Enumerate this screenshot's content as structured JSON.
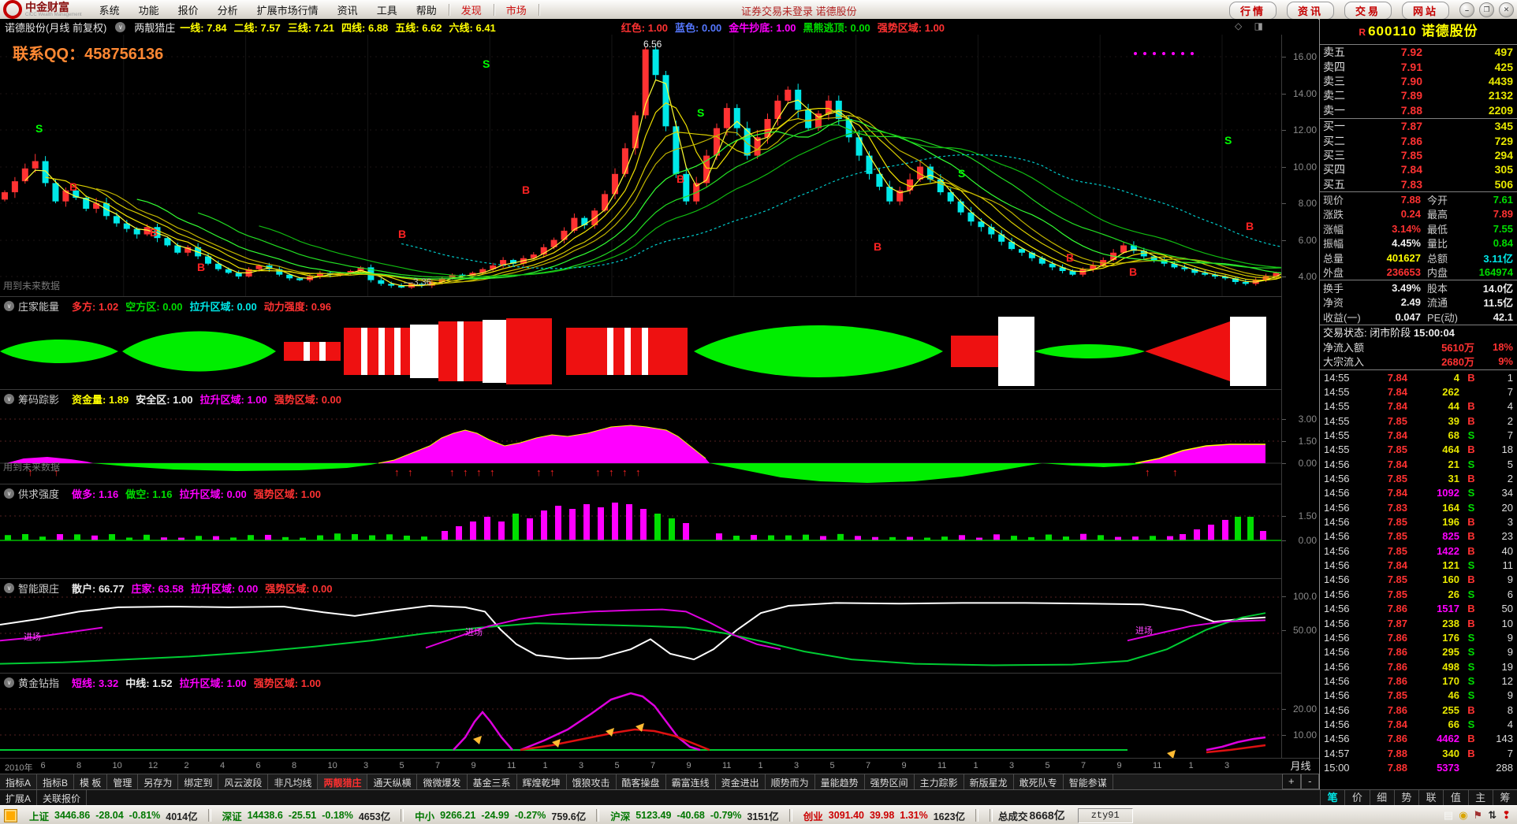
{
  "menu": {
    "logo_title": "中金财富",
    "logo_sub": "CICC Wealth Management",
    "items": [
      "系统",
      "功能",
      "报价",
      "分析",
      "扩展市场行情",
      "资讯",
      "工具",
      "帮助"
    ],
    "accent_items": [
      "发现",
      "市场"
    ],
    "login_status": "证券交易未登录 诺德股份",
    "quick_buttons": [
      "行情",
      "资讯",
      "交易",
      "网站"
    ],
    "window_controls": [
      "–",
      "❐",
      "✕"
    ]
  },
  "chart_header": {
    "title": "诺德股份(月线 前复权)",
    "indicator": "两靓猎庄",
    "params": [
      {
        "label": "一线",
        "value": "7.84",
        "color": "yellow"
      },
      {
        "label": "二线",
        "value": "7.57",
        "color": "yellow"
      },
      {
        "label": "三线",
        "value": "7.21",
        "color": "yellow"
      },
      {
        "label": "四线",
        "value": "6.88",
        "color": "yellow"
      },
      {
        "label": "五线",
        "value": "6.62",
        "color": "yellow"
      },
      {
        "label": "六线",
        "value": "6.41",
        "color": "yellow"
      },
      {
        "label": "红色",
        "value": "1.00",
        "color": "red",
        "gap": true
      },
      {
        "label": "蓝色",
        "value": "0.00",
        "color": "blue"
      },
      {
        "label": "金牛抄底",
        "value": "1.00",
        "color": "magenta"
      },
      {
        "label": "黑熊逃顶",
        "value": "0.00",
        "color": "green"
      },
      {
        "label": "强势区域",
        "value": "1.00",
        "color": "red"
      }
    ]
  },
  "overlays": {
    "qq": "联系QQ：458756136",
    "future_note": "用到未来数据",
    "high_label": "6.56",
    "low_label": "3.36",
    "layout_icons": "◇ ◨",
    "entry_label": "进场"
  },
  "panels": [
    {
      "name": "庄家能量",
      "params": [
        {
          "label": "多方",
          "value": "1.02",
          "color": "red"
        },
        {
          "label": "空方区",
          "value": "0.00",
          "color": "green"
        },
        {
          "label": "拉升区域",
          "value": "0.00",
          "color": "cyan"
        },
        {
          "label": "动力强度",
          "value": "0.96",
          "color": "red"
        }
      ],
      "axis": []
    },
    {
      "name": "筹码踪影",
      "params": [
        {
          "label": "资金量",
          "value": "1.89",
          "color": "yellow"
        },
        {
          "label": "安全区",
          "value": "1.00",
          "color": "white"
        },
        {
          "label": "拉升区域",
          "value": "1.00",
          "color": "magenta"
        },
        {
          "label": "强势区域",
          "value": "0.00",
          "color": "red"
        }
      ],
      "axis": [
        "3.00",
        "1.50",
        "0.00"
      ]
    },
    {
      "name": "供求强度",
      "params": [
        {
          "label": "做多",
          "value": "1.16",
          "color": "magenta"
        },
        {
          "label": "做空",
          "value": "1.16",
          "color": "green"
        },
        {
          "label": "拉升区域",
          "value": "0.00",
          "color": "magenta"
        },
        {
          "label": "强势区域",
          "value": "1.00",
          "color": "red"
        }
      ],
      "axis": [
        "1.50",
        "0.00"
      ]
    },
    {
      "name": "智能跟庄",
      "params": [
        {
          "label": "散户",
          "value": "66.77",
          "color": "white"
        },
        {
          "label": "庄家",
          "value": "63.58",
          "color": "magenta"
        },
        {
          "label": "拉升区域",
          "value": "0.00",
          "color": "magenta"
        },
        {
          "label": "强势区域",
          "value": "0.00",
          "color": "red"
        }
      ],
      "axis": [
        "100.0",
        "50.00"
      ]
    },
    {
      "name": "黄金钻指",
      "params": [
        {
          "label": "短线",
          "value": "3.32",
          "color": "magenta"
        },
        {
          "label": "中线",
          "value": "1.52",
          "color": "white"
        },
        {
          "label": "拉升区域",
          "value": "1.00",
          "color": "magenta"
        },
        {
          "label": "强势区域",
          "value": "1.00",
          "color": "red"
        }
      ],
      "axis": [
        "20.00",
        "10.00"
      ]
    }
  ],
  "main_axis": [
    "16.00",
    "14.00",
    "12.00",
    "10.00",
    "8.00",
    "6.00",
    "4.00"
  ],
  "date_axis": [
    "2010年",
    "6",
    "8",
    "10",
    "12",
    "2",
    "4",
    "6",
    "8",
    "10",
    "3",
    "5",
    "7",
    "9",
    "11",
    "1",
    "3",
    "5",
    "7",
    "9",
    "11",
    "1",
    "3",
    "5",
    "7",
    "9",
    "11",
    "1",
    "3",
    "5",
    "7",
    "9",
    "11",
    "1",
    "3"
  ],
  "period_label": "月线",
  "zoom_buttons": [
    "+",
    "-"
  ],
  "bottom_tabs": [
    "指标A",
    "指标B",
    "模 板",
    "管理",
    "另存为",
    "绑定到",
    "风云波段",
    "非凡均线",
    "两靓猎庄",
    "通天纵横",
    "微微爆发",
    "基金三系",
    "辉煌乾坤",
    "饿狼攻击",
    "酷客操盘",
    "霸富连线",
    "资金进出",
    "顺势而为",
    "量能趋势",
    "强势区间",
    "主力踪影",
    "新版星龙",
    "敢死队专",
    "智能参谋"
  ],
  "active_bottom_tab": "两靓猎庄",
  "sub_tabs": [
    "扩展A",
    "关联报价"
  ],
  "quote_panel": {
    "marker": "R",
    "code": "600110",
    "name": "诺德股份",
    "asks": [
      [
        "卖五",
        "7.92",
        "497"
      ],
      [
        "卖四",
        "7.91",
        "425"
      ],
      [
        "卖三",
        "7.90",
        "4439"
      ],
      [
        "卖二",
        "7.89",
        "2132"
      ],
      [
        "卖一",
        "7.88",
        "2209"
      ]
    ],
    "bids": [
      [
        "买一",
        "7.87",
        "345"
      ],
      [
        "买二",
        "7.86",
        "729"
      ],
      [
        "买三",
        "7.85",
        "294"
      ],
      [
        "买四",
        "7.84",
        "305"
      ],
      [
        "买五",
        "7.83",
        "506"
      ]
    ],
    "stats": [
      [
        [
          "现价",
          "7.88",
          "red"
        ],
        [
          "今开",
          "7.61",
          "green"
        ]
      ],
      [
        [
          "涨跌",
          "0.24",
          "red"
        ],
        [
          "最高",
          "7.89",
          "red"
        ]
      ],
      [
        [
          "涨幅",
          "3.14%",
          "red"
        ],
        [
          "最低",
          "7.55",
          "green"
        ]
      ],
      [
        [
          "振幅",
          "4.45%",
          "white"
        ],
        [
          "量比",
          "0.84",
          "green"
        ]
      ],
      [
        [
          "总量",
          "401627",
          "yellow"
        ],
        [
          "总额",
          "3.11亿",
          "cyan"
        ]
      ],
      [
        [
          "外盘",
          "236653",
          "red"
        ],
        [
          "内盘",
          "164974",
          "green"
        ]
      ]
    ],
    "stats2": [
      [
        [
          "换手",
          "3.49%",
          "white"
        ],
        [
          "股本",
          "14.0亿",
          "white"
        ]
      ],
      [
        [
          "净资",
          "2.49",
          "white"
        ],
        [
          "流通",
          "11.5亿",
          "white"
        ]
      ],
      [
        [
          "收益(一)",
          "0.047",
          "white"
        ],
        [
          "PE(动)",
          "42.1",
          "white"
        ]
      ]
    ],
    "trade_status": "交易状态: 闭市阶段",
    "trade_time": "15:00:04",
    "flows": [
      [
        "净流入额",
        "5610万",
        "18%"
      ],
      [
        "大宗流入",
        "2680万",
        "9%"
      ]
    ],
    "ticks": [
      [
        "14:55",
        "7.84",
        "4",
        "B",
        "1"
      ],
      [
        "14:55",
        "7.84",
        "262",
        "",
        "7"
      ],
      [
        "14:55",
        "7.84",
        "44",
        "B",
        "4"
      ],
      [
        "14:55",
        "7.85",
        "39",
        "B",
        "2"
      ],
      [
        "14:55",
        "7.84",
        "68",
        "S",
        "7"
      ],
      [
        "14:55",
        "7.85",
        "464",
        "B",
        "18"
      ],
      [
        "14:56",
        "7.84",
        "21",
        "S",
        "5"
      ],
      [
        "14:56",
        "7.85",
        "31",
        "B",
        "2"
      ],
      [
        "14:56",
        "7.84",
        "1092",
        "S",
        "34"
      ],
      [
        "14:56",
        "7.83",
        "164",
        "S",
        "20"
      ],
      [
        "14:56",
        "7.85",
        "196",
        "B",
        "3"
      ],
      [
        "14:56",
        "7.85",
        "825",
        "B",
        "23"
      ],
      [
        "14:56",
        "7.85",
        "1422",
        "B",
        "40"
      ],
      [
        "14:56",
        "7.84",
        "121",
        "S",
        "11"
      ],
      [
        "14:56",
        "7.85",
        "160",
        "B",
        "9"
      ],
      [
        "14:56",
        "7.85",
        "26",
        "S",
        "6"
      ],
      [
        "14:56",
        "7.86",
        "1517",
        "B",
        "50"
      ],
      [
        "14:56",
        "7.87",
        "238",
        "B",
        "10"
      ],
      [
        "14:56",
        "7.86",
        "176",
        "S",
        "9"
      ],
      [
        "14:56",
        "7.86",
        "295",
        "S",
        "9"
      ],
      [
        "14:56",
        "7.86",
        "498",
        "S",
        "19"
      ],
      [
        "14:56",
        "7.86",
        "170",
        "S",
        "12"
      ],
      [
        "14:56",
        "7.85",
        "46",
        "S",
        "9"
      ],
      [
        "14:56",
        "7.86",
        "255",
        "B",
        "8"
      ],
      [
        "14:56",
        "7.84",
        "66",
        "S",
        "4"
      ],
      [
        "14:56",
        "7.86",
        "4462",
        "B",
        "143"
      ],
      [
        "14:57",
        "7.88",
        "340",
        "B",
        "7"
      ],
      [
        "15:00",
        "7.88",
        "5373",
        "",
        "288"
      ]
    ],
    "tabs": [
      "笔",
      "价",
      "细",
      "势",
      "联",
      "值",
      "主",
      "筹"
    ],
    "active_tab": "笔"
  },
  "status_bar": {
    "indices": [
      {
        "name": "上证",
        "value": "3446.86",
        "chg": "-28.04",
        "pct": "-0.81%",
        "amt": "4014亿",
        "dir": "down"
      },
      {
        "name": "深证",
        "value": "14438.6",
        "chg": "-25.51",
        "pct": "-0.18%",
        "amt": "4653亿",
        "dir": "down"
      },
      {
        "name": "中小",
        "value": "9266.21",
        "chg": "-24.99",
        "pct": "-0.27%",
        "amt": "759.6亿",
        "dir": "down"
      },
      {
        "name": "沪深",
        "value": "5123.49",
        "chg": "-40.68",
        "pct": "-0.79%",
        "amt": "3151亿",
        "dir": "down"
      },
      {
        "name": "创业",
        "value": "3091.40",
        "chg": "39.98",
        "pct": "1.31%",
        "amt": "1623亿",
        "dir": "up"
      }
    ],
    "total_label": "总成交",
    "total_value": "8668亿",
    "user": "zty91",
    "right_icons": [
      "doc-icon",
      "coin-icon",
      "pin-icon",
      "sort-icon",
      "alert-icon"
    ]
  },
  "chart_data": {
    "type": "candlestick",
    "period": "monthly",
    "high_marker": "6.56",
    "low_marker": "3.36",
    "ylim": [
      4,
      16
    ],
    "closes": [
      8.6,
      9.2,
      9.9,
      10.3,
      9.1,
      8.1,
      8.7,
      8.3,
      7.7,
      8.0,
      7.3,
      6.9,
      6.6,
      6.3,
      6.7,
      6.1,
      5.7,
      5.3,
      5.6,
      5.1,
      4.7,
      4.4,
      4.2,
      4.0,
      4.4,
      4.6,
      4.4,
      4.1,
      3.9,
      3.8,
      4.0,
      4.2,
      4.1,
      4.2,
      4.3,
      4.5,
      3.8,
      3.6,
      3.5,
      3.4,
      3.6,
      3.5,
      3.7,
      3.9,
      4.1,
      4.0,
      4.2,
      4.4,
      4.6,
      4.9,
      4.7,
      5.0,
      5.2,
      5.6,
      6.0,
      6.5,
      7.2,
      6.8,
      7.6,
      8.5,
      9.6,
      11.0,
      12.8,
      16.4,
      15.0,
      12.2,
      9.6,
      8.1,
      9.1,
      10.6,
      12.1,
      13.2,
      12.1,
      10.6,
      11.6,
      12.6,
      13.6,
      14.2,
      13.1,
      12.1,
      12.9,
      13.6,
      12.6,
      11.6,
      10.6,
      9.6,
      8.9,
      8.1,
      8.7,
      9.3,
      10.0,
      9.3,
      8.6,
      8.1,
      7.5,
      7.0,
      6.7,
      6.3,
      5.9,
      5.5,
      5.3,
      5.0,
      4.7,
      4.5,
      4.3,
      4.1,
      4.4,
      4.6,
      4.9,
      5.3,
      5.7,
      5.4,
      5.1,
      4.9,
      4.7,
      4.5,
      4.4,
      4.2,
      4.1,
      4.0,
      3.9,
      3.7,
      3.6,
      3.8,
      4.0,
      4.2,
      4.6,
      4.8,
      4.5,
      4.3,
      4.7,
      5.1,
      5.9,
      7.3,
      9.6,
      12.9,
      10.6,
      7.88
    ],
    "s_marks": [
      [
        45,
        124
      ],
      [
        612,
        42
      ],
      [
        884,
        104
      ],
      [
        1215,
        181
      ],
      [
        1553,
        139
      ]
    ],
    "b_marks": [
      [
        88,
        198
      ],
      [
        190,
        256
      ],
      [
        250,
        300
      ],
      [
        505,
        258
      ],
      [
        662,
        202
      ],
      [
        858,
        188
      ],
      [
        1108,
        274
      ],
      [
        1352,
        288
      ],
      [
        1432,
        306
      ],
      [
        1580,
        248
      ]
    ],
    "entry_points": [
      [
        30,
        56
      ],
      [
        590,
        50
      ],
      [
        1440,
        48
      ]
    ]
  }
}
